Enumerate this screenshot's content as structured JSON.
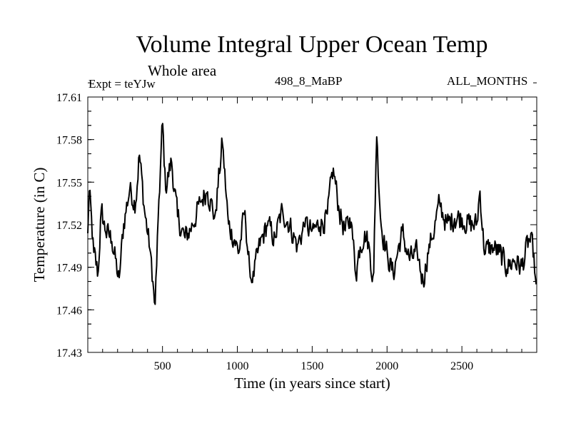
{
  "chart_data": {
    "type": "line",
    "title": "Volume Integral Upper Ocean Temp",
    "subtitle": "Whole area",
    "experiment_label": "Expt = teYJw",
    "run_label": "498_8_MaBP",
    "period_label": "ALL_MONTHS",
    "xlabel": "Time (in years since start)",
    "ylabel": "Temperature (in C)",
    "xlim": [
      1,
      3000
    ],
    "ylim": [
      17.43,
      17.61
    ],
    "x_ticks": [
      500,
      1000,
      1500,
      2000,
      2500
    ],
    "y_ticks": [
      "17.43",
      "17.46",
      "17.49",
      "17.52",
      "17.55",
      "17.58",
      "17.61"
    ],
    "series": [
      {
        "name": "Volume integral upper ocean temperature",
        "baseline": 17.515,
        "noise_amplitude": 0.012,
        "x_step": 5,
        "anchors": [
          [
            0,
            17.51
          ],
          [
            10,
            17.545
          ],
          [
            40,
            17.5
          ],
          [
            70,
            17.485
          ],
          [
            90,
            17.53
          ],
          [
            120,
            17.515
          ],
          [
            160,
            17.51
          ],
          [
            210,
            17.48
          ],
          [
            240,
            17.52
          ],
          [
            280,
            17.545
          ],
          [
            320,
            17.535
          ],
          [
            345,
            17.57
          ],
          [
            380,
            17.53
          ],
          [
            420,
            17.5
          ],
          [
            440,
            17.475
          ],
          [
            450,
            17.46
          ],
          [
            470,
            17.52
          ],
          [
            500,
            17.593
          ],
          [
            520,
            17.545
          ],
          [
            560,
            17.565
          ],
          [
            600,
            17.525
          ],
          [
            650,
            17.51
          ],
          [
            700,
            17.52
          ],
          [
            750,
            17.535
          ],
          [
            800,
            17.545
          ],
          [
            850,
            17.525
          ],
          [
            900,
            17.578
          ],
          [
            940,
            17.52
          ],
          [
            980,
            17.51
          ],
          [
            1010,
            17.5
          ],
          [
            1050,
            17.53
          ],
          [
            1080,
            17.49
          ],
          [
            1100,
            17.48
          ],
          [
            1150,
            17.505
          ],
          [
            1200,
            17.52
          ],
          [
            1250,
            17.51
          ],
          [
            1300,
            17.53
          ],
          [
            1350,
            17.52
          ],
          [
            1400,
            17.505
          ],
          [
            1450,
            17.52
          ],
          [
            1500,
            17.515
          ],
          [
            1550,
            17.52
          ],
          [
            1600,
            17.525
          ],
          [
            1640,
            17.56
          ],
          [
            1680,
            17.53
          ],
          [
            1720,
            17.515
          ],
          [
            1760,
            17.525
          ],
          [
            1790,
            17.485
          ],
          [
            1820,
            17.505
          ],
          [
            1850,
            17.515
          ],
          [
            1880,
            17.505
          ],
          [
            1910,
            17.48
          ],
          [
            1930,
            17.585
          ],
          [
            1960,
            17.52
          ],
          [
            2000,
            17.5
          ],
          [
            2040,
            17.485
          ],
          [
            2070,
            17.5
          ],
          [
            2100,
            17.515
          ],
          [
            2150,
            17.495
          ],
          [
            2200,
            17.5
          ],
          [
            2240,
            17.48
          ],
          [
            2280,
            17.505
          ],
          [
            2300,
            17.51
          ],
          [
            2350,
            17.535
          ],
          [
            2400,
            17.52
          ],
          [
            2450,
            17.525
          ],
          [
            2500,
            17.525
          ],
          [
            2550,
            17.52
          ],
          [
            2600,
            17.52
          ],
          [
            2620,
            17.545
          ],
          [
            2650,
            17.5
          ],
          [
            2700,
            17.505
          ],
          [
            2750,
            17.5
          ],
          [
            2800,
            17.49
          ],
          [
            2850,
            17.495
          ],
          [
            2900,
            17.49
          ],
          [
            2950,
            17.51
          ],
          [
            2980,
            17.5
          ],
          [
            2995,
            17.475
          ],
          [
            3000,
            17.485
          ]
        ]
      }
    ]
  }
}
